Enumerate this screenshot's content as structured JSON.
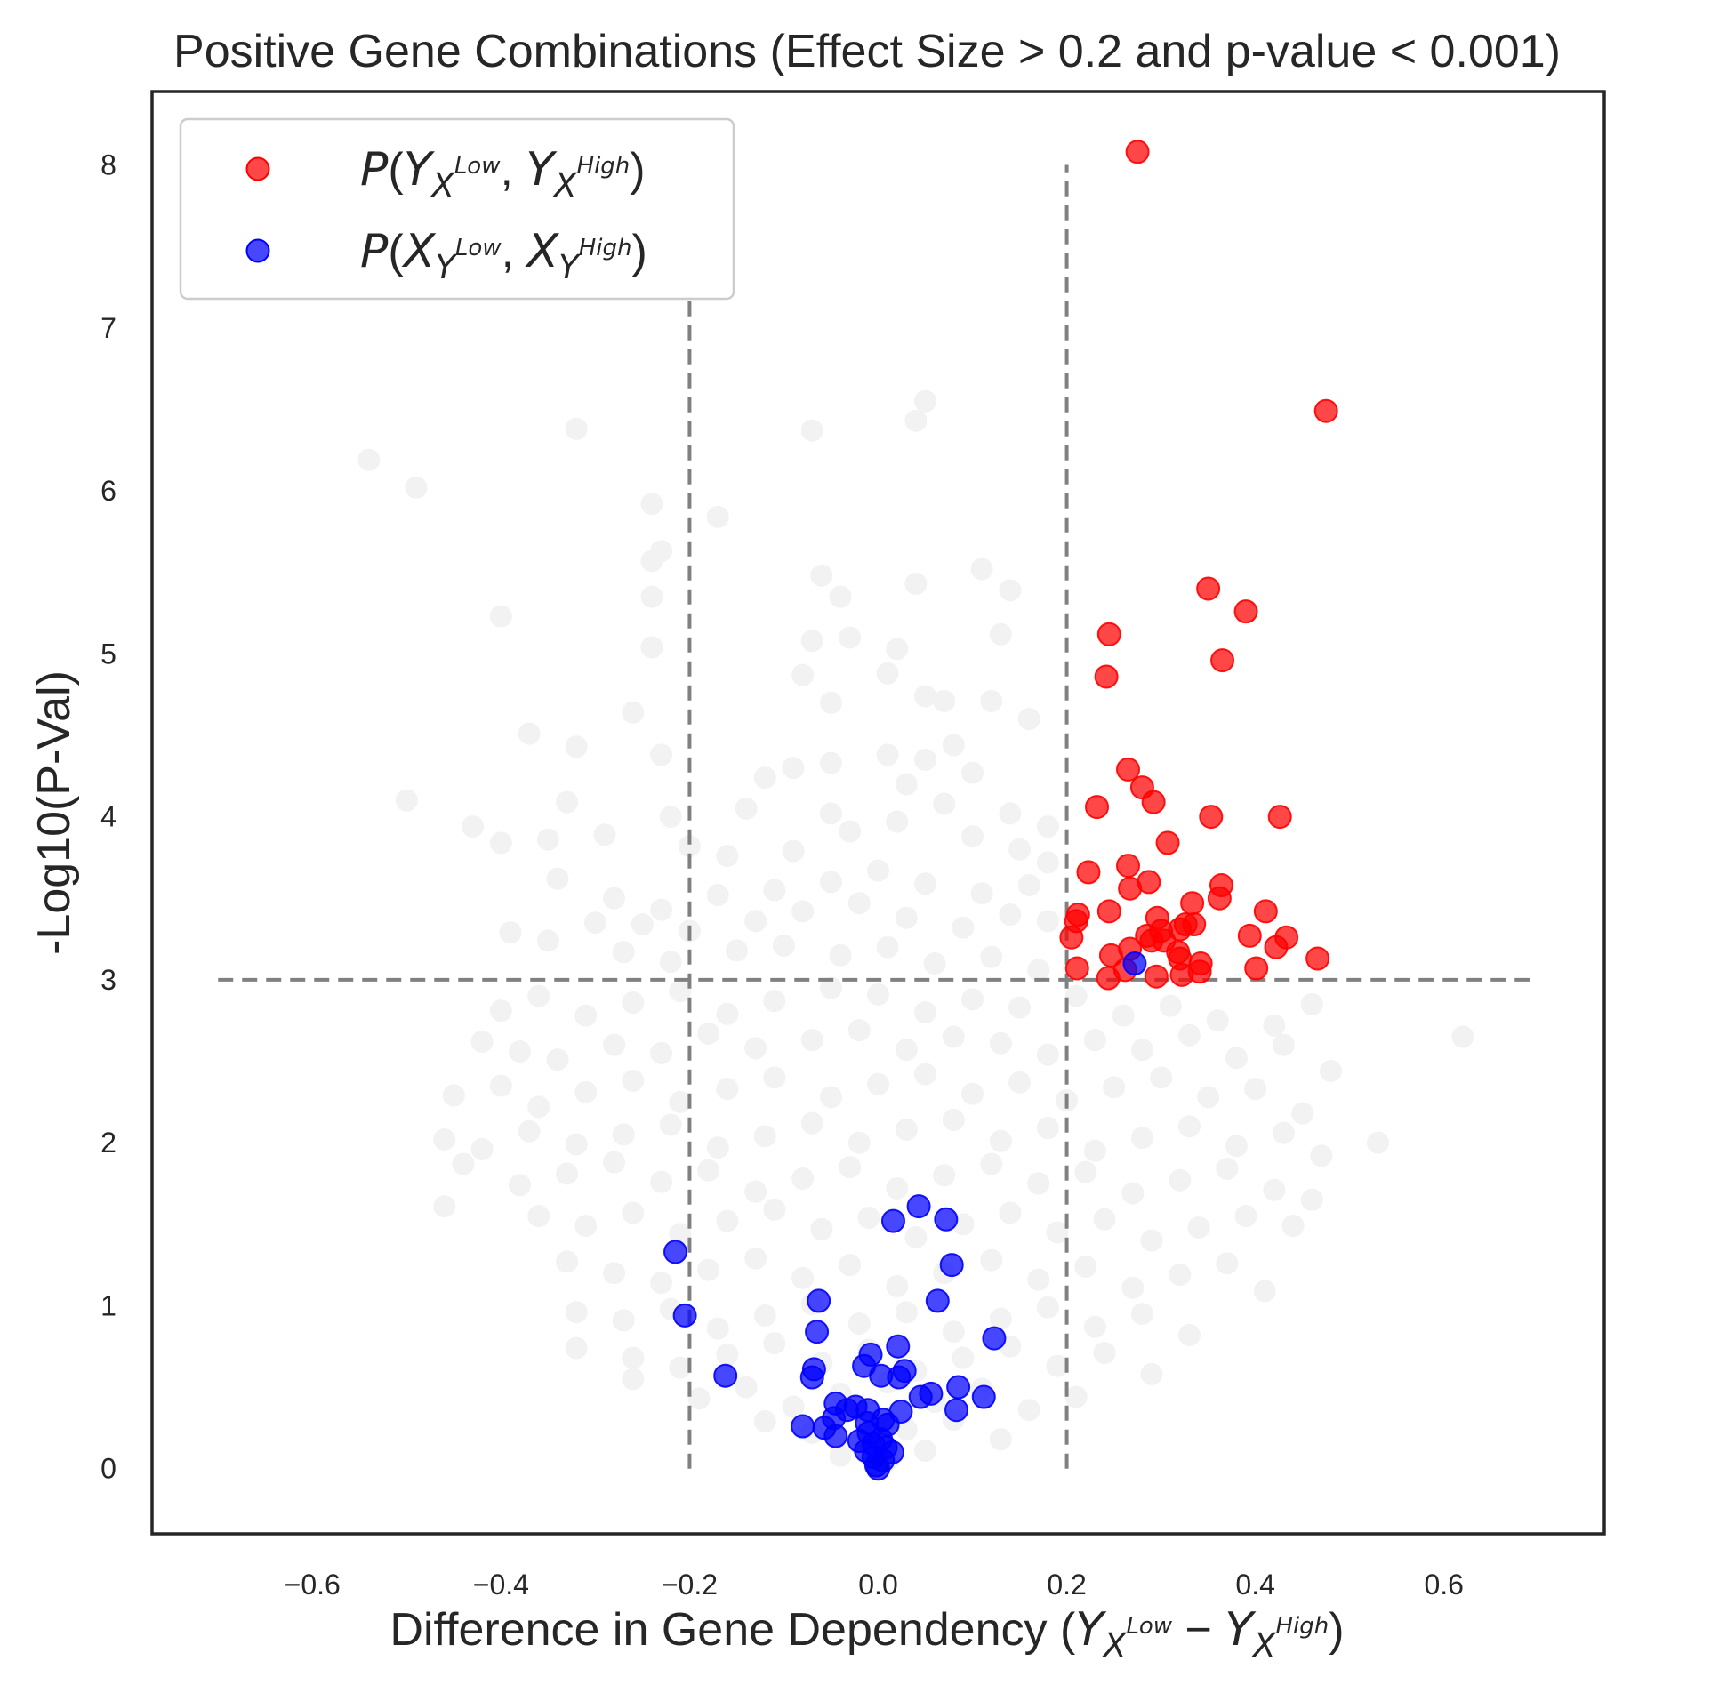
{
  "chart_data": {
    "type": "scatter",
    "title": "Positive Gene Combinations (Effect Size > 0.2 and p-value < 0.001)",
    "xlabel": "Difference in Gene Dependency",
    "xlabel_math": [
      "(",
      "Y",
      "X",
      "Low",
      " − ",
      "Y",
      "X",
      "High",
      ")"
    ],
    "ylabel": "-Log10(P-Val)",
    "xlim": [
      -0.77,
      0.77
    ],
    "ylim": [
      -0.4,
      8.45
    ],
    "x_ticks": [
      -0.6,
      -0.4,
      -0.2,
      0.0,
      0.2,
      0.4,
      0.6
    ],
    "x_tick_labels": [
      "−0.6",
      "−0.4",
      "−0.2",
      "0.0",
      "0.2",
      "0.4",
      "0.6"
    ],
    "y_ticks": [
      0,
      1,
      2,
      3,
      4,
      5,
      6,
      7,
      8
    ],
    "y_tick_labels": [
      "0",
      "1",
      "2",
      "3",
      "4",
      "5",
      "6",
      "7",
      "8"
    ],
    "grid": false,
    "legend_position": "top-left",
    "thresholds": {
      "x": [
        -0.2,
        0.2
      ],
      "y": 3,
      "x_line_extent": [
        0,
        8
      ],
      "y_line_extent": [
        -0.7,
        0.7
      ],
      "color": "#808080",
      "style": "dashed"
    },
    "background_points_color": "#f2f2f2",
    "background_points": [
      [
        -0.54,
        6.19
      ],
      [
        -0.49,
        6.02
      ],
      [
        -0.32,
        6.38
      ],
      [
        -0.07,
        6.37
      ],
      [
        0.04,
        6.43
      ],
      [
        0.05,
        6.55
      ],
      [
        -0.24,
        5.92
      ],
      [
        -0.17,
        5.84
      ],
      [
        -0.23,
        5.63
      ],
      [
        -0.24,
        5.57
      ],
      [
        -0.4,
        5.23
      ],
      [
        -0.24,
        5.35
      ],
      [
        -0.06,
        5.48
      ],
      [
        -0.04,
        5.35
      ],
      [
        0.04,
        5.43
      ],
      [
        0.11,
        5.52
      ],
      [
        0.14,
        5.39
      ],
      [
        -0.24,
        5.04
      ],
      [
        -0.07,
        5.08
      ],
      [
        -0.03,
        5.1
      ],
      [
        0.02,
        5.03
      ],
      [
        0.13,
        5.12
      ],
      [
        -0.08,
        4.87
      ],
      [
        0.01,
        4.88
      ],
      [
        -0.26,
        4.64
      ],
      [
        -0.05,
        4.7
      ],
      [
        0.05,
        4.74
      ],
      [
        0.07,
        4.71
      ],
      [
        0.12,
        4.71
      ],
      [
        0.16,
        4.6
      ],
      [
        -0.37,
        4.51
      ],
      [
        -0.32,
        4.43
      ],
      [
        -0.23,
        4.38
      ],
      [
        -0.12,
        4.24
      ],
      [
        -0.09,
        4.3
      ],
      [
        -0.05,
        4.33
      ],
      [
        0.01,
        4.38
      ],
      [
        0.05,
        4.35
      ],
      [
        0.08,
        4.44
      ],
      [
        0.1,
        4.27
      ],
      [
        -0.5,
        4.1
      ],
      [
        -0.33,
        4.09
      ],
      [
        -0.22,
        4.0
      ],
      [
        -0.14,
        4.05
      ],
      [
        -0.05,
        4.02
      ],
      [
        0.03,
        4.2
      ],
      [
        0.07,
        4.08
      ],
      [
        0.14,
        4.02
      ],
      [
        0.18,
        3.94
      ],
      [
        -0.43,
        3.94
      ],
      [
        -0.4,
        3.84
      ],
      [
        -0.35,
        3.86
      ],
      [
        -0.29,
        3.89
      ],
      [
        -0.2,
        3.82
      ],
      [
        -0.16,
        3.76
      ],
      [
        -0.09,
        3.79
      ],
      [
        -0.03,
        3.91
      ],
      [
        0.02,
        3.97
      ],
      [
        0.1,
        3.88
      ],
      [
        0.15,
        3.8
      ],
      [
        0.18,
        3.72
      ],
      [
        -0.34,
        3.62
      ],
      [
        -0.28,
        3.5
      ],
      [
        -0.23,
        3.43
      ],
      [
        -0.17,
        3.52
      ],
      [
        -0.11,
        3.55
      ],
      [
        -0.05,
        3.6
      ],
      [
        0.0,
        3.67
      ],
      [
        0.05,
        3.59
      ],
      [
        0.11,
        3.53
      ],
      [
        0.16,
        3.58
      ],
      [
        -0.39,
        3.29
      ],
      [
        -0.35,
        3.24
      ],
      [
        -0.3,
        3.35
      ],
      [
        -0.25,
        3.34
      ],
      [
        -0.2,
        3.3
      ],
      [
        -0.13,
        3.36
      ],
      [
        -0.08,
        3.42
      ],
      [
        -0.02,
        3.47
      ],
      [
        0.03,
        3.38
      ],
      [
        0.09,
        3.32
      ],
      [
        0.14,
        3.4
      ],
      [
        0.18,
        3.36
      ],
      [
        -0.27,
        3.17
      ],
      [
        -0.22,
        3.11
      ],
      [
        -0.15,
        3.18
      ],
      [
        -0.1,
        3.21
      ],
      [
        -0.04,
        3.15
      ],
      [
        0.01,
        3.2
      ],
      [
        0.06,
        3.1
      ],
      [
        0.12,
        3.14
      ],
      [
        0.17,
        3.06
      ],
      [
        -0.4,
        2.81
      ],
      [
        -0.36,
        2.9
      ],
      [
        -0.31,
        2.78
      ],
      [
        -0.26,
        2.86
      ],
      [
        -0.21,
        2.93
      ],
      [
        -0.16,
        2.79
      ],
      [
        -0.11,
        2.87
      ],
      [
        -0.05,
        2.95
      ],
      [
        0.0,
        2.91
      ],
      [
        0.05,
        2.8
      ],
      [
        0.1,
        2.88
      ],
      [
        0.15,
        2.83
      ],
      [
        0.21,
        2.9
      ],
      [
        0.26,
        2.78
      ],
      [
        0.31,
        2.84
      ],
      [
        0.36,
        2.75
      ],
      [
        0.42,
        2.72
      ],
      [
        0.46,
        2.85
      ],
      [
        -0.42,
        2.62
      ],
      [
        -0.38,
        2.56
      ],
      [
        -0.34,
        2.51
      ],
      [
        -0.28,
        2.6
      ],
      [
        -0.23,
        2.55
      ],
      [
        -0.18,
        2.67
      ],
      [
        -0.13,
        2.58
      ],
      [
        -0.07,
        2.63
      ],
      [
        -0.02,
        2.69
      ],
      [
        0.03,
        2.57
      ],
      [
        0.08,
        2.65
      ],
      [
        0.13,
        2.61
      ],
      [
        0.18,
        2.54
      ],
      [
        0.23,
        2.63
      ],
      [
        0.28,
        2.57
      ],
      [
        0.33,
        2.66
      ],
      [
        0.38,
        2.52
      ],
      [
        0.43,
        2.6
      ],
      [
        0.62,
        2.65
      ],
      [
        0.48,
        2.44
      ],
      [
        -0.45,
        2.29
      ],
      [
        -0.4,
        2.35
      ],
      [
        -0.36,
        2.22
      ],
      [
        -0.31,
        2.31
      ],
      [
        -0.26,
        2.38
      ],
      [
        -0.21,
        2.25
      ],
      [
        -0.16,
        2.33
      ],
      [
        -0.11,
        2.4
      ],
      [
        -0.05,
        2.28
      ],
      [
        0.0,
        2.36
      ],
      [
        0.05,
        2.42
      ],
      [
        0.1,
        2.3
      ],
      [
        0.15,
        2.37
      ],
      [
        0.2,
        2.26
      ],
      [
        0.25,
        2.34
      ],
      [
        0.3,
        2.4
      ],
      [
        0.35,
        2.28
      ],
      [
        0.4,
        2.33
      ],
      [
        0.45,
        2.18
      ],
      [
        -0.46,
        2.02
      ],
      [
        -0.42,
        1.96
      ],
      [
        -0.37,
        2.07
      ],
      [
        -0.32,
        1.99
      ],
      [
        -0.27,
        2.05
      ],
      [
        -0.22,
        2.11
      ],
      [
        -0.17,
        1.97
      ],
      [
        -0.12,
        2.04
      ],
      [
        -0.07,
        2.12
      ],
      [
        -0.02,
        2.0
      ],
      [
        0.03,
        2.08
      ],
      [
        0.08,
        2.14
      ],
      [
        0.13,
        2.01
      ],
      [
        0.18,
        2.09
      ],
      [
        0.23,
        1.95
      ],
      [
        0.28,
        2.03
      ],
      [
        0.33,
        2.1
      ],
      [
        0.38,
        1.98
      ],
      [
        0.43,
        2.06
      ],
      [
        0.47,
        1.92
      ],
      [
        0.53,
        2.0
      ],
      [
        -0.44,
        1.87
      ],
      [
        -0.38,
        1.74
      ],
      [
        -0.33,
        1.81
      ],
      [
        -0.28,
        1.88
      ],
      [
        -0.23,
        1.76
      ],
      [
        -0.18,
        1.83
      ],
      [
        -0.13,
        1.7
      ],
      [
        -0.08,
        1.78
      ],
      [
        -0.03,
        1.85
      ],
      [
        0.02,
        1.72
      ],
      [
        0.07,
        1.8
      ],
      [
        0.12,
        1.87
      ],
      [
        0.17,
        1.75
      ],
      [
        0.22,
        1.82
      ],
      [
        0.27,
        1.69
      ],
      [
        0.32,
        1.77
      ],
      [
        0.37,
        1.84
      ],
      [
        0.42,
        1.71
      ],
      [
        0.46,
        1.65
      ],
      [
        -0.46,
        1.61
      ],
      [
        -0.36,
        1.55
      ],
      [
        -0.31,
        1.49
      ],
      [
        -0.26,
        1.57
      ],
      [
        -0.21,
        1.44
      ],
      [
        -0.16,
        1.52
      ],
      [
        -0.11,
        1.59
      ],
      [
        -0.06,
        1.47
      ],
      [
        -0.01,
        1.54
      ],
      [
        0.04,
        1.42
      ],
      [
        0.09,
        1.5
      ],
      [
        0.14,
        1.57
      ],
      [
        0.19,
        1.45
      ],
      [
        0.24,
        1.53
      ],
      [
        0.29,
        1.4
      ],
      [
        0.34,
        1.48
      ],
      [
        0.39,
        1.55
      ],
      [
        0.44,
        1.49
      ],
      [
        -0.33,
        1.27
      ],
      [
        -0.28,
        1.2
      ],
      [
        -0.23,
        1.14
      ],
      [
        -0.18,
        1.22
      ],
      [
        -0.13,
        1.29
      ],
      [
        -0.08,
        1.17
      ],
      [
        -0.03,
        1.25
      ],
      [
        0.02,
        1.12
      ],
      [
        0.07,
        1.2
      ],
      [
        0.12,
        1.28
      ],
      [
        0.17,
        1.16
      ],
      [
        0.22,
        1.24
      ],
      [
        0.27,
        1.11
      ],
      [
        0.32,
        1.19
      ],
      [
        0.37,
        1.26
      ],
      [
        0.41,
        1.09
      ],
      [
        -0.32,
        0.96
      ],
      [
        -0.27,
        0.91
      ],
      [
        -0.22,
        0.98
      ],
      [
        -0.17,
        0.86
      ],
      [
        -0.12,
        0.94
      ],
      [
        -0.07,
        1.01
      ],
      [
        -0.02,
        0.89
      ],
      [
        0.03,
        0.96
      ],
      [
        0.08,
        0.84
      ],
      [
        0.13,
        0.92
      ],
      [
        0.18,
        0.99
      ],
      [
        0.23,
        0.87
      ],
      [
        0.28,
        0.95
      ],
      [
        0.33,
        0.82
      ],
      [
        -0.32,
        0.74
      ],
      [
        -0.26,
        0.68
      ],
      [
        -0.21,
        0.62
      ],
      [
        -0.16,
        0.7
      ],
      [
        -0.11,
        0.77
      ],
      [
        -0.06,
        0.65
      ],
      [
        -0.01,
        0.73
      ],
      [
        0.04,
        0.6
      ],
      [
        0.09,
        0.68
      ],
      [
        0.14,
        0.75
      ],
      [
        0.19,
        0.63
      ],
      [
        0.24,
        0.71
      ],
      [
        0.29,
        0.58
      ],
      [
        -0.26,
        0.55
      ],
      [
        -0.19,
        0.43
      ],
      [
        -0.14,
        0.5
      ],
      [
        -0.09,
        0.38
      ],
      [
        -0.04,
        0.46
      ],
      [
        0.01,
        0.53
      ],
      [
        0.06,
        0.41
      ],
      [
        0.11,
        0.49
      ],
      [
        0.16,
        0.36
      ],
      [
        0.21,
        0.44
      ],
      [
        -0.12,
        0.29
      ],
      [
        -0.07,
        0.22
      ],
      [
        -0.02,
        0.15
      ],
      [
        0.03,
        0.24
      ],
      [
        0.08,
        0.3
      ],
      [
        0.13,
        0.18
      ],
      [
        -0.04,
        0.08
      ],
      [
        0.01,
        0.05
      ],
      [
        0.05,
        0.11
      ]
    ],
    "series": [
      {
        "name": "P(Y_{X^{Low}}, Y_{X^{High}})",
        "legend_math": [
          "P(",
          "Y",
          "X",
          "Low",
          ", ",
          "Y",
          "X",
          "High",
          ")"
        ],
        "color": "#ff0000",
        "points": [
          [
            0.275,
            8.08
          ],
          [
            0.475,
            6.49
          ],
          [
            0.35,
            5.4
          ],
          [
            0.39,
            5.26
          ],
          [
            0.245,
            5.12
          ],
          [
            0.365,
            4.96
          ],
          [
            0.242,
            4.86
          ],
          [
            0.265,
            4.29
          ],
          [
            0.28,
            4.18
          ],
          [
            0.292,
            4.09
          ],
          [
            0.232,
            4.06
          ],
          [
            0.353,
            4.0
          ],
          [
            0.426,
            4.0
          ],
          [
            0.307,
            3.84
          ],
          [
            0.265,
            3.7
          ],
          [
            0.223,
            3.66
          ],
          [
            0.287,
            3.6
          ],
          [
            0.267,
            3.56
          ],
          [
            0.364,
            3.58
          ],
          [
            0.362,
            3.5
          ],
          [
            0.333,
            3.47
          ],
          [
            0.411,
            3.42
          ],
          [
            0.245,
            3.42
          ],
          [
            0.212,
            3.4
          ],
          [
            0.296,
            3.38
          ],
          [
            0.326,
            3.34
          ],
          [
            0.335,
            3.34
          ],
          [
            0.21,
            3.36
          ],
          [
            0.3,
            3.3
          ],
          [
            0.32,
            3.31
          ],
          [
            0.394,
            3.27
          ],
          [
            0.433,
            3.26
          ],
          [
            0.205,
            3.26
          ],
          [
            0.285,
            3.27
          ],
          [
            0.303,
            3.24
          ],
          [
            0.422,
            3.2
          ],
          [
            0.318,
            3.17
          ],
          [
            0.247,
            3.15
          ],
          [
            0.267,
            3.19
          ],
          [
            0.466,
            3.13
          ],
          [
            0.32,
            3.13
          ],
          [
            0.342,
            3.1
          ],
          [
            0.401,
            3.07
          ],
          [
            0.211,
            3.07
          ],
          [
            0.262,
            3.06
          ],
          [
            0.295,
            3.02
          ],
          [
            0.244,
            3.01
          ],
          [
            0.322,
            3.03
          ],
          [
            0.341,
            3.05
          ],
          [
            0.29,
            3.24
          ]
        ]
      },
      {
        "name": "P(X_{Y^{Low}}, X_{Y^{High}})",
        "legend_math": [
          "P(",
          "X",
          "Y",
          "Low",
          ", ",
          "X",
          "Y",
          "High",
          ")"
        ],
        "color": "#0000ff",
        "points": [
          [
            0.272,
            3.1
          ],
          [
            0.043,
            1.61
          ],
          [
            0.072,
            1.53
          ],
          [
            0.016,
            1.52
          ],
          [
            -0.215,
            1.33
          ],
          [
            0.078,
            1.25
          ],
          [
            -0.063,
            1.03
          ],
          [
            0.063,
            1.03
          ],
          [
            -0.205,
            0.94
          ],
          [
            -0.065,
            0.84
          ],
          [
            0.123,
            0.8
          ],
          [
            0.021,
            0.75
          ],
          [
            -0.008,
            0.7
          ],
          [
            -0.015,
            0.63
          ],
          [
            0.028,
            0.6
          ],
          [
            -0.068,
            0.61
          ],
          [
            -0.07,
            0.56
          ],
          [
            -0.162,
            0.57
          ],
          [
            0.003,
            0.57
          ],
          [
            0.022,
            0.56
          ],
          [
            0.085,
            0.5
          ],
          [
            0.056,
            0.46
          ],
          [
            0.045,
            0.44
          ],
          [
            -0.045,
            0.4
          ],
          [
            0.112,
            0.44
          ],
          [
            -0.024,
            0.38
          ],
          [
            -0.011,
            0.36
          ],
          [
            0.024,
            0.35
          ],
          [
            0.083,
            0.36
          ],
          [
            -0.033,
            0.36
          ],
          [
            -0.047,
            0.31
          ],
          [
            0.005,
            0.3
          ],
          [
            -0.012,
            0.28
          ],
          [
            0.01,
            0.27
          ],
          [
            -0.08,
            0.26
          ],
          [
            -0.057,
            0.25
          ],
          [
            -0.045,
            0.2
          ],
          [
            -0.01,
            0.22
          ],
          [
            0.003,
            0.18
          ],
          [
            -0.005,
            0.15
          ],
          [
            -0.013,
            0.11
          ],
          [
            0.015,
            0.1
          ],
          [
            0.005,
            0.05
          ],
          [
            -0.002,
            0.02
          ],
          [
            0.0,
            0.0
          ],
          [
            -0.005,
            0.07
          ],
          [
            0.008,
            0.13
          ],
          [
            -0.02,
            0.17
          ]
        ]
      }
    ]
  }
}
